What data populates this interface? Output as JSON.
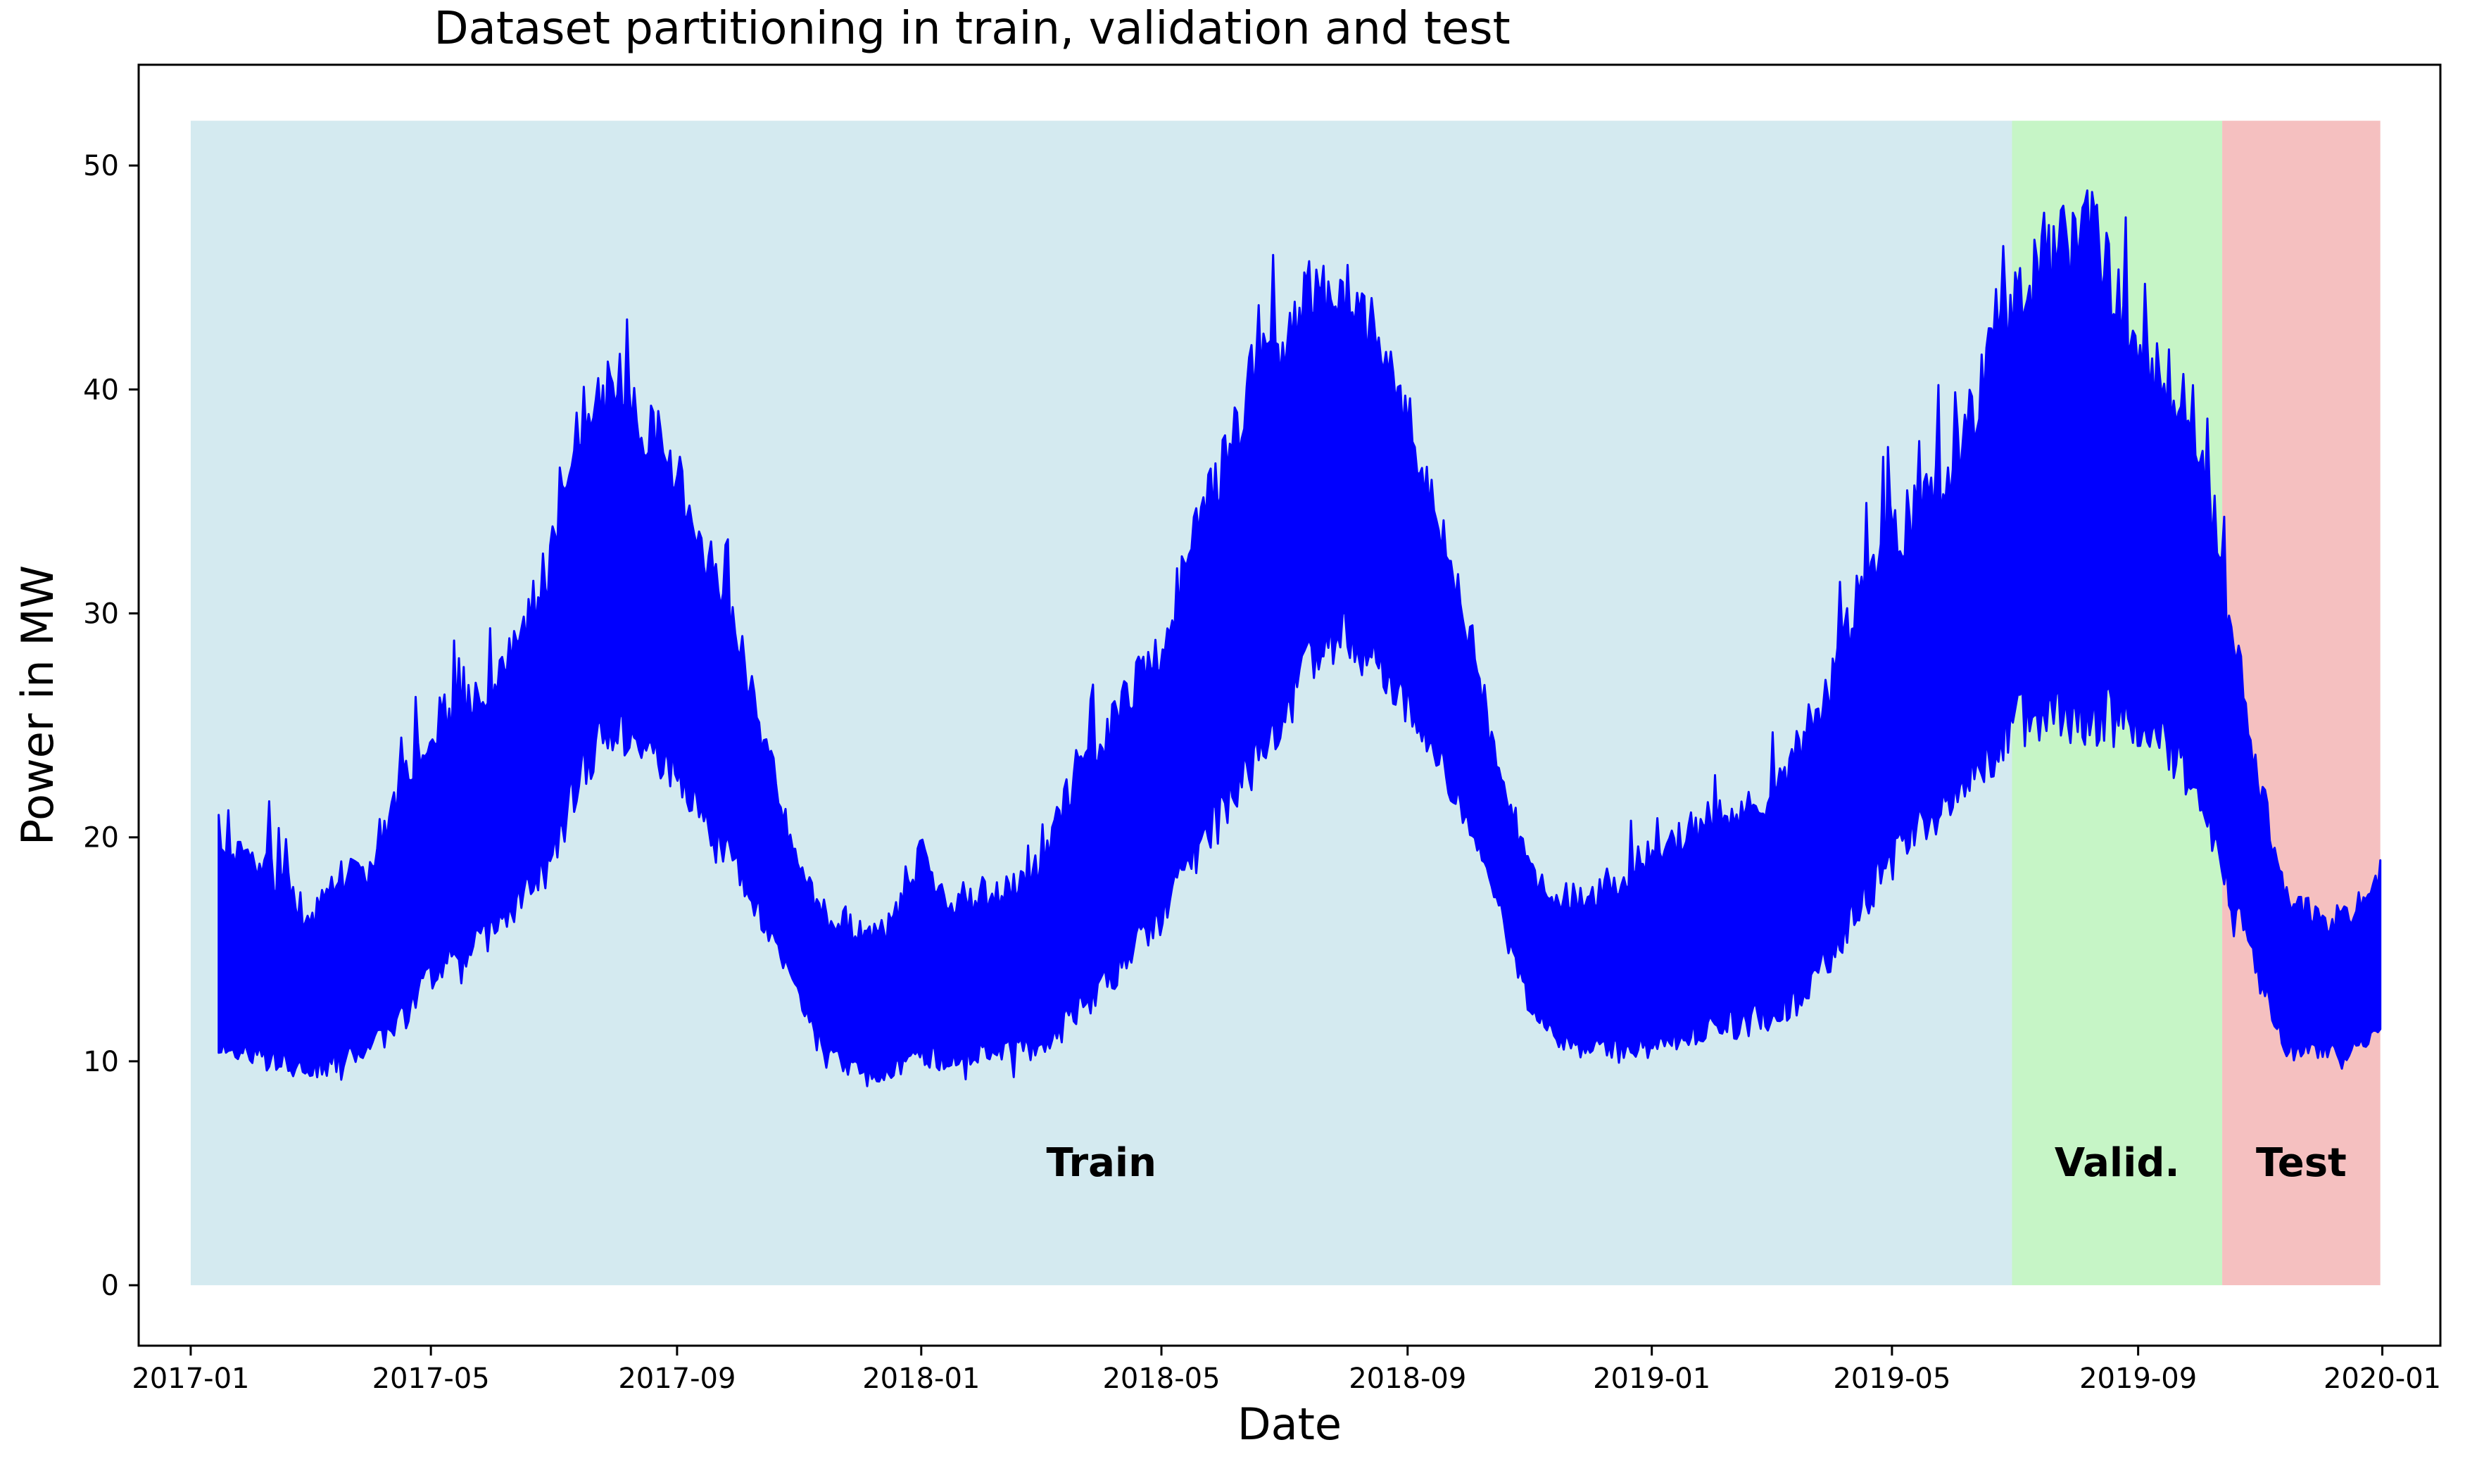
{
  "chart_data": {
    "type": "line",
    "title": "Dataset partitioning in train, validation and test",
    "xlabel": "Date",
    "ylabel": "Power in MW",
    "xlim": [
      "2016-12-06",
      "2020-01-30"
    ],
    "ylim": [
      -2.7,
      54.5
    ],
    "grid": false,
    "line_color": "#0000ff",
    "x_ticks": [
      "2017-01",
      "2017-05",
      "2017-09",
      "2018-01",
      "2018-05",
      "2018-09",
      "2019-01",
      "2019-05",
      "2019-09",
      "2020-01"
    ],
    "y_ticks": [
      0,
      10,
      20,
      30,
      40,
      50
    ],
    "regions": [
      {
        "label": "Train",
        "start": "2017-01-01",
        "end": "2019-06-30",
        "color": "#d4eaf0"
      },
      {
        "label": "Valid.",
        "start": "2019-06-30",
        "end": "2019-10-13",
        "color": "#c6f5c6"
      },
      {
        "label": "Test",
        "start": "2019-10-13",
        "end": "2019-12-31",
        "color": "#f5c0c0"
      }
    ],
    "regions_ymax": 52,
    "region_label_y": 5.5,
    "series": [
      {
        "x": [
          "2017-01-15",
          "2017-02-01",
          "2017-02-15",
          "2017-03-01",
          "2017-03-15",
          "2017-04-01",
          "2017-04-15",
          "2017-05-01",
          "2017-05-15",
          "2017-06-01",
          "2017-06-15",
          "2017-07-01",
          "2017-07-15",
          "2017-08-01",
          "2017-08-15",
          "2017-09-01",
          "2017-09-15",
          "2017-10-01",
          "2017-10-15",
          "2017-11-01",
          "2017-11-15",
          "2017-12-01",
          "2017-12-15",
          "2018-01-01",
          "2018-01-15",
          "2018-02-01",
          "2018-02-15",
          "2018-03-01",
          "2018-03-15",
          "2018-04-01",
          "2018-04-15",
          "2018-05-01",
          "2018-05-15",
          "2018-06-01",
          "2018-06-15",
          "2018-07-01",
          "2018-07-15",
          "2018-08-01",
          "2018-08-15",
          "2018-09-01",
          "2018-09-15",
          "2018-10-01",
          "2018-10-15",
          "2018-11-01",
          "2018-11-15",
          "2018-12-01",
          "2018-12-15",
          "2019-01-01",
          "2019-01-15",
          "2019-02-01",
          "2019-02-15",
          "2019-03-01",
          "2019-03-15",
          "2019-04-01",
          "2019-04-15",
          "2019-05-01",
          "2019-05-15",
          "2019-06-01",
          "2019-06-15",
          "2019-07-01",
          "2019-07-15",
          "2019-08-01",
          "2019-08-15",
          "2019-09-01",
          "2019-09-15",
          "2019-10-01",
          "2019-10-15",
          "2019-11-01",
          "2019-11-15",
          "2019-12-01",
          "2019-12-15",
          "2019-12-31"
        ],
        "low": [
          10,
          9.5,
          9.5,
          9,
          9.5,
          10,
          11,
          13,
          14,
          15,
          16.5,
          18,
          22,
          24,
          23,
          22,
          20,
          18,
          15.5,
          12.5,
          10,
          9,
          9,
          9.5,
          9.5,
          10,
          10,
          10,
          11,
          12.5,
          14,
          15.5,
          18,
          20,
          22,
          24,
          27,
          28,
          27,
          25,
          23,
          20,
          17,
          12,
          10.5,
          10,
          10,
          10,
          10.5,
          11,
          11,
          11.5,
          12,
          14,
          16,
          18,
          19.5,
          20.5,
          22,
          24,
          24,
          24,
          24,
          24,
          23,
          21,
          17,
          13,
          10,
          10,
          10,
          11
        ],
        "high": [
          21,
          20,
          19,
          17,
          19,
          19.5,
          23,
          26,
          27,
          28,
          30,
          34,
          40,
          42,
          40,
          37,
          34,
          30,
          25,
          19,
          17,
          16.5,
          16.5,
          20,
          18,
          18,
          18.5,
          19,
          23,
          25.5,
          28,
          30,
          34,
          38,
          42,
          44,
          46,
          46,
          44,
          40,
          36,
          30,
          24,
          19,
          18,
          18,
          19,
          20,
          21,
          22,
          22,
          23,
          25,
          28,
          33,
          35,
          36,
          38,
          42,
          46,
          47,
          49,
          48,
          43,
          42,
          40,
          32,
          23,
          18,
          17,
          17,
          19
        ]
      }
    ]
  }
}
